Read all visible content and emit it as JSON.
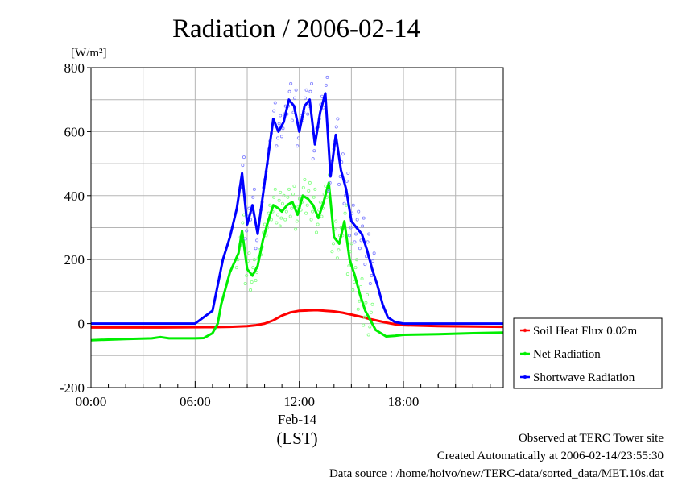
{
  "chart_data": {
    "type": "line",
    "title": "Radiation / 2006-02-14",
    "ylabel": "[W/m²]",
    "xlabel": "(LST)",
    "date_label": "Feb-14",
    "ylim": [
      -200,
      800
    ],
    "yticks": [
      -200,
      0,
      200,
      400,
      600,
      800
    ],
    "ytick_labels": [
      "-200",
      "0",
      "200",
      "400",
      "600",
      "800"
    ],
    "xlim": [
      0,
      23.75
    ],
    "xticks": [
      0,
      6,
      12,
      18
    ],
    "xtick_labels": [
      "00:00",
      "06:00",
      "12:00",
      "18:00"
    ],
    "grid": true,
    "legend_position": "right",
    "series": [
      {
        "name": "Soil Heat Flux 0.02m",
        "color": "#ff0000",
        "x": [
          0,
          4,
          7,
          8,
          9,
          9.5,
          10,
          10.5,
          11,
          11.5,
          12,
          12.5,
          13,
          13.5,
          14,
          14.5,
          15,
          15.5,
          16,
          16.5,
          17,
          17.5,
          18,
          20,
          23.75
        ],
        "y": [
          -12,
          -12,
          -11,
          -10,
          -8,
          -5,
          0,
          10,
          25,
          35,
          40,
          41,
          42,
          40,
          38,
          34,
          28,
          22,
          15,
          9,
          3,
          -2,
          -5,
          -8,
          -10
        ]
      },
      {
        "name": "Net Radiation",
        "color": "#00ee00",
        "x": [
          0,
          2,
          3.5,
          4,
          4.5,
          6,
          6.5,
          7,
          7.3,
          7.5,
          8,
          8.5,
          8.7,
          9,
          9.3,
          9.6,
          9.9,
          10.2,
          10.5,
          10.8,
          11,
          11.3,
          11.6,
          11.9,
          12.2,
          12.5,
          12.8,
          13.1,
          13.4,
          13.7,
          14,
          14.3,
          14.6,
          14.9,
          15.2,
          15.5,
          15.8,
          16.1,
          16.4,
          16.7,
          17,
          17.5,
          18,
          20,
          22,
          23.75
        ],
        "y": [
          -52,
          -48,
          -46,
          -42,
          -46,
          -46,
          -45,
          -30,
          0,
          60,
          160,
          220,
          290,
          170,
          150,
          180,
          260,
          320,
          370,
          360,
          350,
          370,
          380,
          340,
          400,
          390,
          370,
          330,
          380,
          440,
          270,
          250,
          320,
          200,
          150,
          90,
          40,
          10,
          -20,
          -30,
          -40,
          -38,
          -35,
          -33,
          -30,
          -28
        ]
      },
      {
        "name": "Shortwave Radiation",
        "color": "#0000ff",
        "x": [
          0,
          4,
          6,
          6.5,
          7,
          7.3,
          7.6,
          8,
          8.4,
          8.7,
          9,
          9.3,
          9.6,
          9.9,
          10.2,
          10.5,
          10.8,
          11.1,
          11.4,
          11.7,
          12,
          12.3,
          12.6,
          12.9,
          13.2,
          13.5,
          13.8,
          14.1,
          14.4,
          14.7,
          15,
          15.3,
          15.6,
          15.9,
          16.2,
          16.5,
          16.8,
          17.1,
          17.5,
          18,
          20,
          23.75
        ],
        "y": [
          0,
          0,
          0,
          20,
          40,
          120,
          200,
          270,
          360,
          470,
          310,
          370,
          280,
          400,
          520,
          640,
          600,
          630,
          700,
          680,
          600,
          680,
          700,
          560,
          660,
          720,
          460,
          590,
          480,
          420,
          320,
          300,
          280,
          230,
          170,
          120,
          60,
          20,
          5,
          0,
          0,
          0
        ]
      }
    ]
  },
  "footer": {
    "line1": "Observed at TERC Tower site",
    "line2": "Created Automatically at 2006-02-14/23:55:30",
    "line3": "Data source : /home/hoivo/new/TERC-data/sorted_data/MET.10s.dat"
  }
}
